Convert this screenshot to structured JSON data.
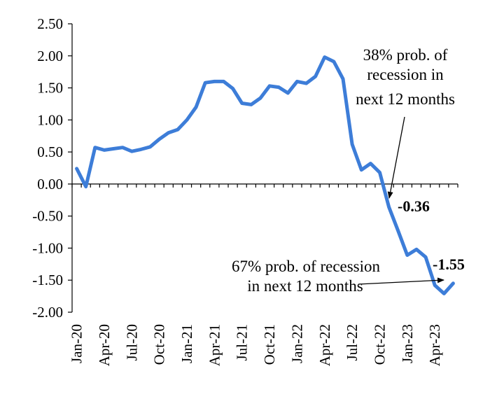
{
  "chart_data": {
    "type": "line",
    "title": "",
    "xlabel": "",
    "ylabel": "",
    "ylim": [
      -2.0,
      2.5
    ],
    "yticks": [
      "2.50",
      "2.00",
      "1.50",
      "1.00",
      "0.50",
      "0.00",
      "-0.50",
      "-1.00",
      "-1.50",
      "-2.00"
    ],
    "xtick_labels": [
      "Jan-20",
      "Apr-20",
      "Jul-20",
      "Oct-20",
      "Jan-21",
      "Apr-21",
      "Jul-21",
      "Oct-21",
      "Jan-22",
      "Apr-22",
      "Jul-22",
      "Oct-22",
      "Jan-23",
      "Apr-23"
    ],
    "grid": false,
    "legend": "none",
    "series_color": "#3D7DD8",
    "x": [
      "Jan-20",
      "Feb-20",
      "Mar-20",
      "Apr-20",
      "May-20",
      "Jun-20",
      "Jul-20",
      "Aug-20",
      "Sep-20",
      "Oct-20",
      "Nov-20",
      "Dec-20",
      "Jan-21",
      "Feb-21",
      "Mar-21",
      "Apr-21",
      "May-21",
      "Jun-21",
      "Jul-21",
      "Aug-21",
      "Sep-21",
      "Oct-21",
      "Nov-21",
      "Dec-21",
      "Jan-22",
      "Feb-22",
      "Mar-22",
      "Apr-22",
      "May-22",
      "Jun-22",
      "Jul-22",
      "Aug-22",
      "Sep-22",
      "Oct-22",
      "Nov-22",
      "Dec-22",
      "Jan-23",
      "Feb-23",
      "Mar-23",
      "Apr-23",
      "May-23",
      "Jun-23"
    ],
    "series": [
      {
        "values": [
          0.24,
          -0.04,
          0.57,
          0.53,
          0.55,
          0.57,
          0.51,
          0.54,
          0.58,
          0.7,
          0.8,
          0.85,
          1.0,
          1.2,
          1.58,
          1.6,
          1.6,
          1.49,
          1.26,
          1.24,
          1.34,
          1.53,
          1.51,
          1.42,
          1.6,
          1.57,
          1.68,
          1.98,
          1.91,
          1.64,
          0.62,
          0.22,
          0.32,
          0.18,
          -0.36,
          -0.73,
          -1.11,
          -1.02,
          -1.14,
          -1.58,
          -1.71,
          -1.55
        ]
      }
    ],
    "annotations": {
      "upper_line1": "38% prob. of",
      "upper_line2": "recession in",
      "upper_line3": "next  12 months",
      "upper_value": "-0.36",
      "lower_line1": "67% prob. of recession",
      "lower_line2": "in next  12 months",
      "lower_value": "-1.55"
    }
  }
}
